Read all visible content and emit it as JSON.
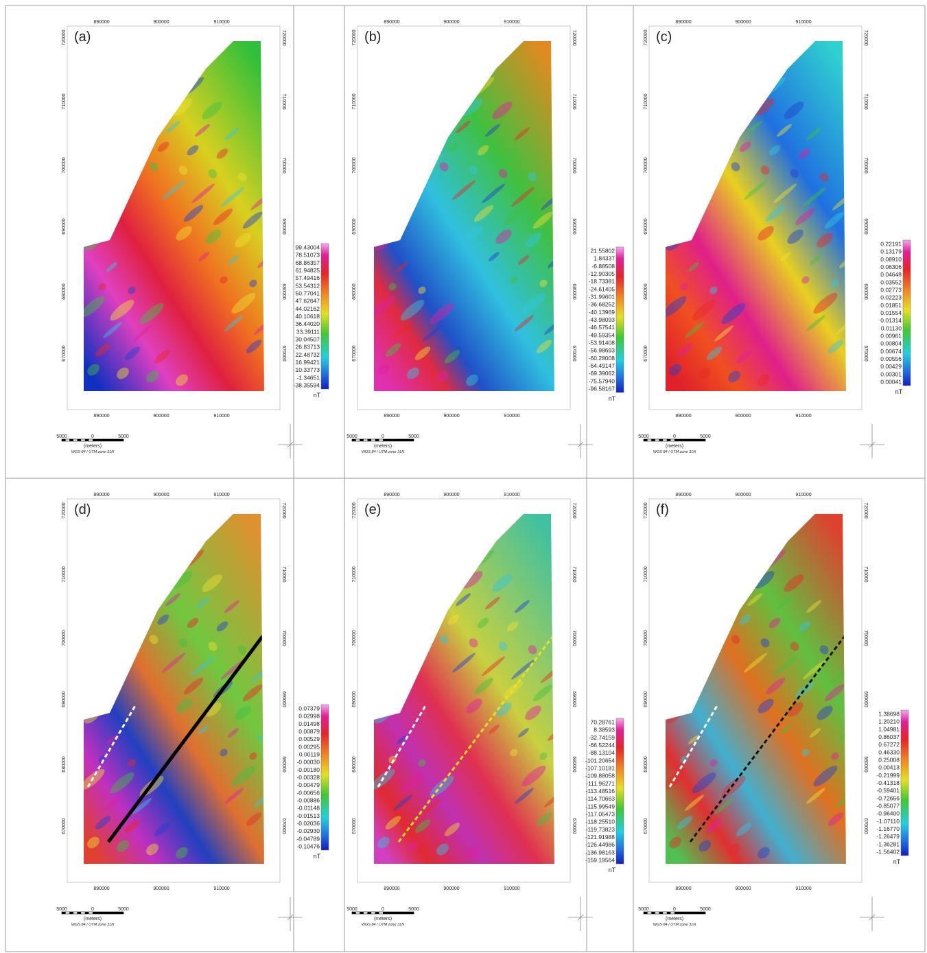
{
  "map_axes": {
    "x_ticks": [
      "890000",
      "900000",
      "910000"
    ],
    "y_ticks": [
      "720000",
      "710000",
      "700000",
      "690000",
      "680000",
      "670000"
    ]
  },
  "scale_bar": {
    "labels": [
      "5000",
      "0",
      "5000"
    ],
    "unit": "(meters)",
    "crs": "WGS 84 / UTM zone 31N"
  },
  "panels": [
    {
      "label": "(a)",
      "unit": "nT",
      "colorbar": [
        "99.43004",
        "78.51073",
        "68.86357",
        "61.94825",
        "57.49416",
        "53.54312",
        "50.77041",
        "47.62647",
        "44.02162",
        "40.10618",
        "36.44020",
        "33.39111",
        "30.04507",
        "26.83713",
        "22.48732",
        "16.99421",
        "10.33773",
        "-1.34651",
        "-38.35594"
      ]
    },
    {
      "label": "(b)",
      "unit": "nT",
      "colorbar": [
        "21.55802",
        "1.84337",
        "-6.88508",
        "-12.90305",
        "-18.73381",
        "-24.61405",
        "-31.99601",
        "-36.68252",
        "-40.13969",
        "-43.98093",
        "-46.57541",
        "-49.59354",
        "-53.91408",
        "-56.98693",
        "-60.28008",
        "-64.49147",
        "-69.39062",
        "-75.57940",
        "-96.58167"
      ]
    },
    {
      "label": "(c)",
      "unit": "nT",
      "colorbar": [
        "0.22191",
        "0.13179",
        "0.08910",
        "0.06306",
        "0.04648",
        "0.03552",
        "0.02773",
        "0.02223",
        "0.01851",
        "0.01554",
        "0.01314",
        "0.01130",
        "0.00961",
        "0.00804",
        "0.00674",
        "0.00556",
        "0.00429",
        "0.00301",
        "0.00041"
      ]
    },
    {
      "label": "(d)",
      "unit": "nT",
      "colorbar": [
        "0.07379",
        "0.02998",
        "0.01498",
        "0.00879",
        "0.00529",
        "0.00295",
        "0.00119",
        "-0.00030",
        "-0.00180",
        "-0.00328",
        "-0.00479",
        "-0.00656",
        "-0.00886",
        "-0.01148",
        "-0.01513",
        "-0.02036",
        "-0.02930",
        "-0.04789",
        "-0.10476"
      ]
    },
    {
      "label": "(e)",
      "unit": "nT",
      "colorbar": [
        "70.28761",
        "8.38593",
        "-32.74159",
        "-66.52244",
        "-88.13104",
        "-101.20654",
        "-107.10181",
        "-109.88058",
        "-111.96271",
        "-113.48516",
        "-114.70663",
        "-115.99549",
        "-117.05473",
        "-118.25510",
        "-119.73823",
        "-121.91988",
        "-126.44986",
        "-136.98163",
        "-159.19564"
      ]
    },
    {
      "label": "(f)",
      "unit": "nT",
      "colorbar": [
        "1.38698",
        "1.20210",
        "1.04981",
        "0.86037",
        "0.67272",
        "0.46330",
        "0.25008",
        "0.00413",
        "-0.21999",
        "-0.41318",
        "-0.59401",
        "-0.72656",
        "-0.85077",
        "-0.96400",
        "-1.07110",
        "-1.16770",
        "-1.26479",
        "-1.36281",
        "-1.56402"
      ]
    }
  ]
}
